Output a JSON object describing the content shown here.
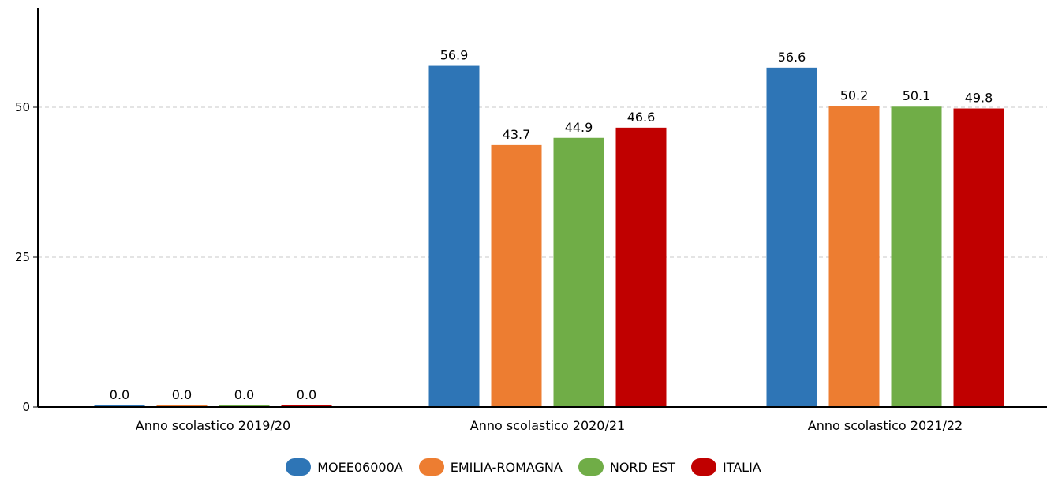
{
  "chart_data": {
    "type": "bar",
    "categories": [
      "Anno scolastico 2019/20",
      "Anno scolastico 2020/21",
      "Anno scolastico 2021/22"
    ],
    "series": [
      {
        "name": "MOEE06000A",
        "color": "#2e75b6",
        "values": [
          0.0,
          56.9,
          56.6
        ],
        "labels": [
          "0.0",
          "56.9",
          "56.6"
        ]
      },
      {
        "name": "EMILIA-ROMAGNA",
        "color": "#ed7d31",
        "values": [
          0.0,
          43.7,
          50.2
        ],
        "labels": [
          "0.0",
          "43.7",
          "50.2"
        ]
      },
      {
        "name": "NORD EST",
        "color": "#70ad47",
        "values": [
          0.0,
          44.9,
          50.1
        ],
        "labels": [
          "0.0",
          "44.9",
          "50.1"
        ]
      },
      {
        "name": "ITALIA",
        "color": "#c00000",
        "values": [
          0.0,
          46.6,
          49.8
        ],
        "labels": [
          "0.0",
          "46.6",
          "49.8"
        ]
      }
    ],
    "yticks": [
      "0",
      "25",
      "50"
    ],
    "ylim": [
      0,
      62
    ],
    "grid": true,
    "legend_position": "bottom-center"
  }
}
